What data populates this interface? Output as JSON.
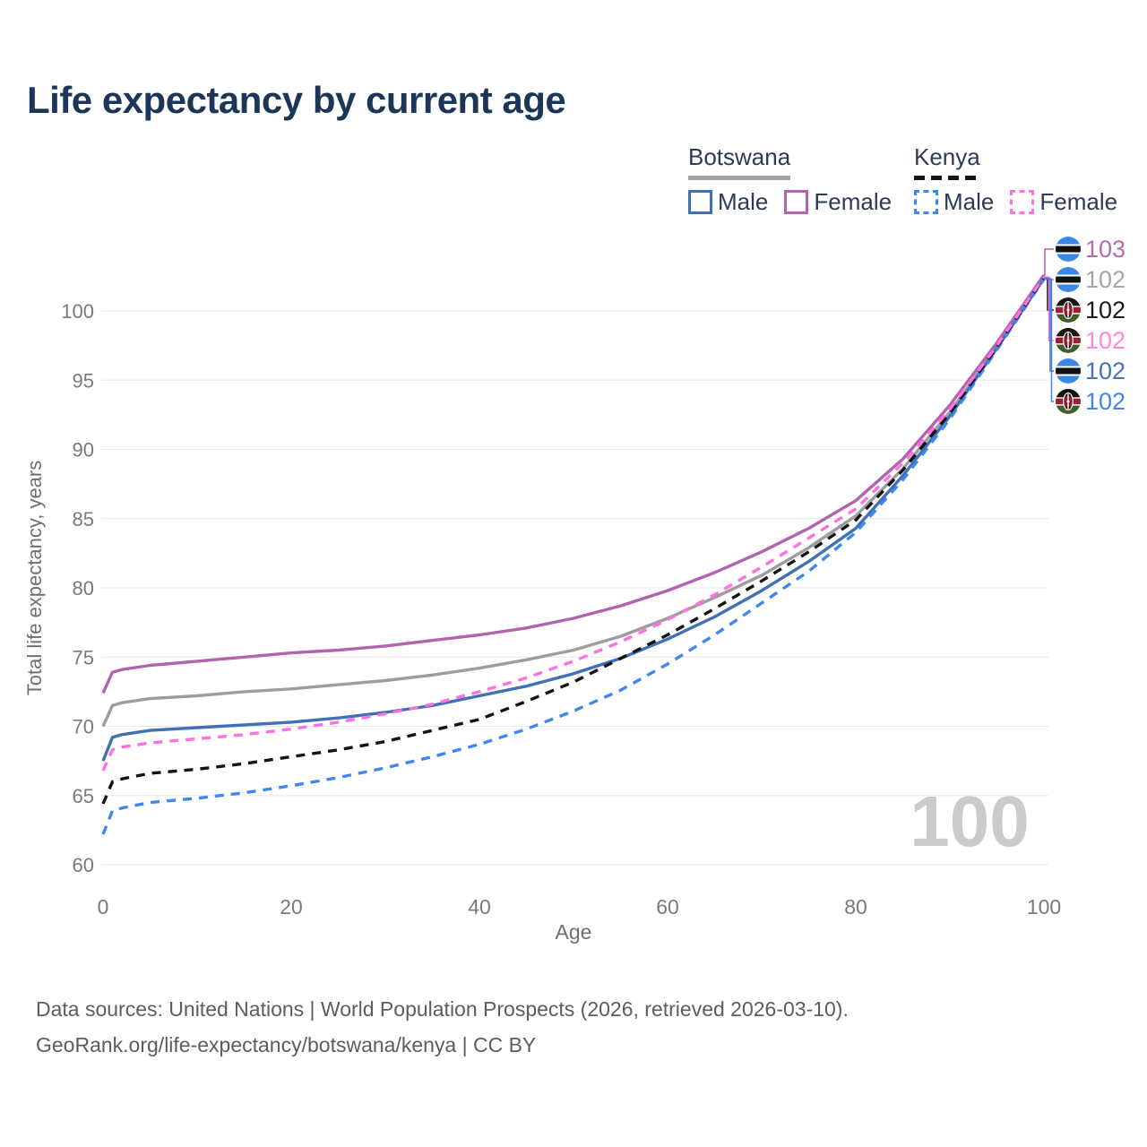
{
  "title": "Life expectancy by current age",
  "footer": {
    "line1": "Data sources: United Nations | World Population Prospects (2026, retrieved 2026-03-10).",
    "line2": "GeoRank.org/life-expectancy/botswana/kenya | CC BY"
  },
  "legend": {
    "groups": [
      {
        "id": "botswana",
        "label": "Botswana",
        "line_style": "solid",
        "line_color": "#a3a3a3",
        "items": [
          {
            "id": "botswana-male",
            "label": "Male",
            "color": "#4170b5",
            "dashed": false
          },
          {
            "id": "botswana-female",
            "label": "Female",
            "color": "#b164ad",
            "dashed": false
          }
        ]
      },
      {
        "id": "kenya",
        "label": "Kenya",
        "line_style": "dashed",
        "line_color": "#151515",
        "items": [
          {
            "id": "kenya-male",
            "label": "Male",
            "color": "#3f87f0",
            "dashed": true
          },
          {
            "id": "kenya-female",
            "label": "Female",
            "color": "#ff70e1",
            "dashed": true
          }
        ]
      }
    ]
  },
  "chart_data": {
    "type": "line",
    "title": "Life expectancy by current age",
    "xlabel": "Age",
    "ylabel": "Total life expectancy, years",
    "xlim": [
      0,
      100
    ],
    "ylim": [
      60,
      103
    ],
    "xticks": [
      0,
      20,
      40,
      60,
      80,
      100
    ],
    "yticks": [
      60,
      65,
      70,
      75,
      80,
      85,
      90,
      95,
      100
    ],
    "grid": "horizontal",
    "grid_color": "#e8e8e8",
    "tick_color": "#7a7a7a",
    "axis_title_color": "#6f6f6f",
    "watermark": "100",
    "watermark_color": "#cbcbcb",
    "x": [
      0,
      1,
      2,
      5,
      10,
      15,
      20,
      25,
      30,
      35,
      40,
      45,
      50,
      55,
      60,
      65,
      70,
      75,
      80,
      85,
      90,
      95,
      100
    ],
    "series": [
      {
        "id": "botswana-female",
        "name": "Botswana Female",
        "country": "Botswana",
        "sex": "Female",
        "color": "#b164ad",
        "dashed": false,
        "values": [
          72.4,
          73.9,
          74.1,
          74.4,
          74.7,
          75.0,
          75.3,
          75.5,
          75.8,
          76.2,
          76.6,
          77.1,
          77.8,
          78.7,
          79.8,
          81.1,
          82.6,
          84.3,
          86.3,
          89.3,
          93.2,
          97.7,
          102.6
        ]
      },
      {
        "id": "botswana-all",
        "name": "Botswana",
        "country": "Botswana",
        "sex": "All",
        "color": "#9d9d9d",
        "dashed": false,
        "values": [
          70.0,
          71.5,
          71.7,
          72.0,
          72.2,
          72.5,
          72.7,
          73.0,
          73.3,
          73.7,
          74.2,
          74.8,
          75.5,
          76.5,
          77.8,
          79.3,
          80.9,
          82.9,
          85.2,
          88.6,
          92.7,
          97.4,
          102.4
        ]
      },
      {
        "id": "kenya-all",
        "name": "Kenya",
        "country": "Kenya",
        "sex": "All",
        "color": "#141414",
        "dashed": true,
        "values": [
          64.4,
          66.0,
          66.2,
          66.6,
          66.9,
          67.3,
          67.8,
          68.3,
          68.9,
          69.7,
          70.5,
          71.8,
          73.2,
          74.9,
          76.6,
          78.5,
          80.5,
          82.6,
          84.9,
          88.5,
          92.6,
          97.4,
          102.4
        ]
      },
      {
        "id": "kenya-female",
        "name": "Kenya Female",
        "country": "Kenya",
        "sex": "Female",
        "color": "#ff70e1",
        "dashed": true,
        "values": [
          66.8,
          68.3,
          68.5,
          68.8,
          69.1,
          69.4,
          69.8,
          70.3,
          70.9,
          71.6,
          72.5,
          73.5,
          74.7,
          76.1,
          77.7,
          79.5,
          81.5,
          83.6,
          85.7,
          89.0,
          92.9,
          97.5,
          102.45
        ]
      },
      {
        "id": "botswana-male",
        "name": "Botswana Male",
        "country": "Botswana",
        "sex": "Male",
        "color": "#4170b5",
        "dashed": false,
        "values": [
          67.5,
          69.2,
          69.4,
          69.7,
          69.9,
          70.1,
          70.3,
          70.6,
          71.0,
          71.5,
          72.2,
          72.9,
          73.8,
          74.9,
          76.3,
          77.9,
          79.8,
          81.9,
          84.3,
          88.1,
          92.4,
          97.3,
          102.35
        ]
      },
      {
        "id": "kenya-male",
        "name": "Kenya Male",
        "country": "Kenya",
        "sex": "Male",
        "color": "#3f87f0",
        "dashed": true,
        "values": [
          62.2,
          63.9,
          64.1,
          64.5,
          64.8,
          65.2,
          65.7,
          66.3,
          67.0,
          67.8,
          68.7,
          69.8,
          71.1,
          72.6,
          74.5,
          76.6,
          78.9,
          81.2,
          84.0,
          87.8,
          92.2,
          97.2,
          102.3
        ]
      }
    ],
    "right_labels": [
      {
        "series": "botswana-female",
        "flag": "botswana",
        "value": "103",
        "color": "#b36caf"
      },
      {
        "series": "botswana-all",
        "flag": "botswana",
        "value": "102",
        "color": "#a6a6a6"
      },
      {
        "series": "kenya-all",
        "flag": "kenya",
        "value": "102",
        "color": "#1a1a1a"
      },
      {
        "series": "kenya-female",
        "flag": "kenya",
        "value": "102",
        "color": "#ff85e0"
      },
      {
        "series": "botswana-male",
        "flag": "botswana",
        "value": "102",
        "color": "#4473b9"
      },
      {
        "series": "kenya-male",
        "flag": "kenya",
        "value": "102",
        "color": "#3f87f0"
      }
    ],
    "flag_colors": {
      "botswana_blue": "#3c87e6",
      "botswana_band": "#121212",
      "kenya_black": "#141414",
      "kenya_red": "#9b2033",
      "kenya_green": "#3f6128",
      "kenya_shield": "#8e1f2f"
    }
  }
}
